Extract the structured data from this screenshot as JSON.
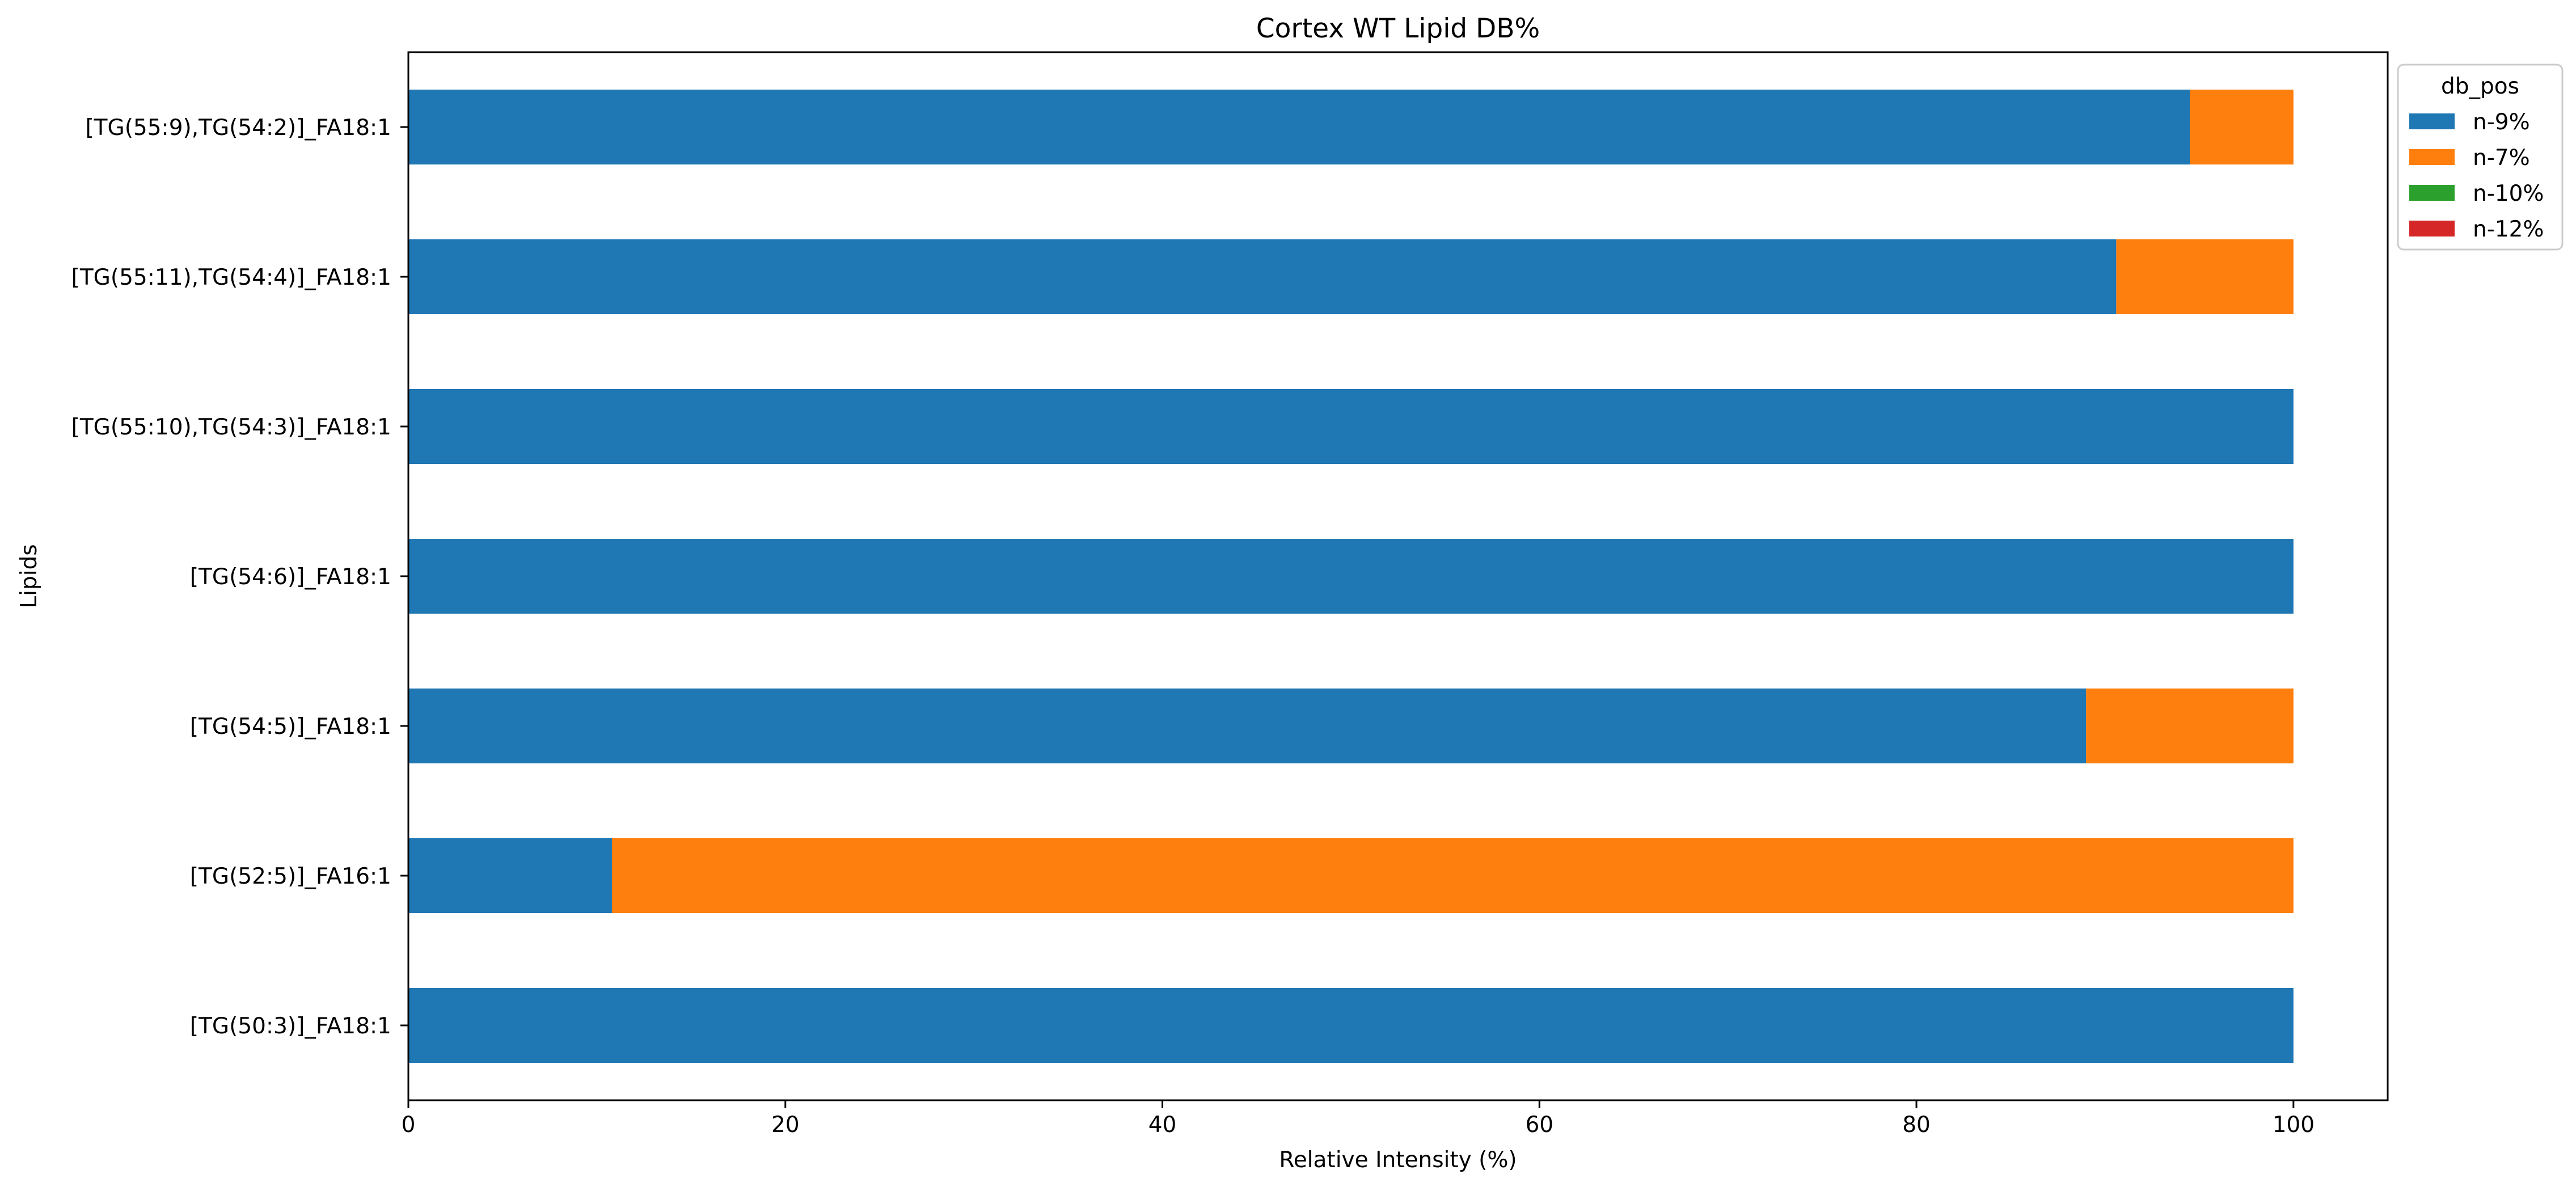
{
  "chart_data": {
    "type": "bar",
    "orientation": "horizontal",
    "stacked": true,
    "title": "Cortex WT Lipid DB%",
    "xlabel": "Relative Intensity (%)",
    "ylabel": "Lipids",
    "xlim": [
      0,
      105
    ],
    "xticks": [
      0,
      20,
      40,
      60,
      80,
      100
    ],
    "grid": false,
    "legend_title": "db_pos",
    "legend_position": "upper-right-outside",
    "categories": [
      "[TG(50:3)]_FA18:1",
      "[TG(52:5)]_FA16:1",
      "[TG(54:5)]_FA18:1",
      "[TG(54:6)]_FA18:1",
      "[TG(55:10),TG(54:3)]_FA18:1",
      "[TG(55:11),TG(54:4)]_FA18:1",
      "[TG(55:9),TG(54:2)]_FA18:1"
    ],
    "series": [
      {
        "name": "n-9%",
        "color": "#1f77b4",
        "values": [
          100,
          10.8,
          89.0,
          100,
          100,
          90.6,
          94.5
        ]
      },
      {
        "name": "n-7%",
        "color": "#ff7f0e",
        "values": [
          0,
          89.2,
          11.0,
          0,
          0,
          9.4,
          5.5
        ]
      },
      {
        "name": "n-10%",
        "color": "#2ca02c",
        "values": [
          0,
          0,
          0,
          0,
          0,
          0,
          0
        ]
      },
      {
        "name": "n-12%",
        "color": "#d62728",
        "values": [
          0,
          0,
          0,
          0,
          0,
          0,
          0
        ]
      }
    ]
  }
}
